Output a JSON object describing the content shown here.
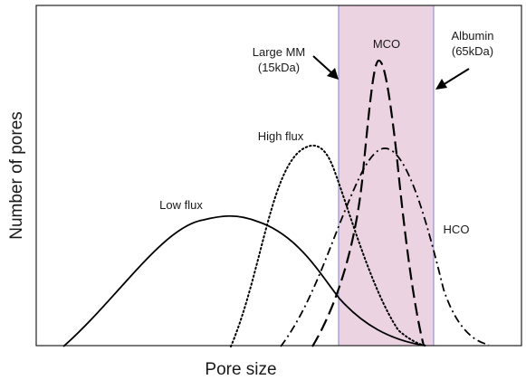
{
  "axes": {
    "y_label": "Number of pores",
    "x_label": "Pore size"
  },
  "band": {
    "color": "#ecd3e2",
    "border_color": "#7f86c4"
  },
  "curves": [
    {
      "id": "low-flux",
      "label": "Low flux",
      "style": "solid"
    },
    {
      "id": "high-flux",
      "label": "High flux",
      "style": "dotted"
    },
    {
      "id": "mco",
      "label": "MCO",
      "style": "long-dash"
    },
    {
      "id": "hco",
      "label": "HCO",
      "style": "dash-dot"
    }
  ],
  "markers": [
    {
      "id": "large-mm",
      "line1": "Large MM",
      "line2": "(15kDa)"
    },
    {
      "id": "albumin",
      "line1": "Albumin",
      "line2": "(65kDa)"
    }
  ],
  "colors": {
    "line": "#000000",
    "frame": "#222222",
    "text": "#1a1a1a"
  }
}
